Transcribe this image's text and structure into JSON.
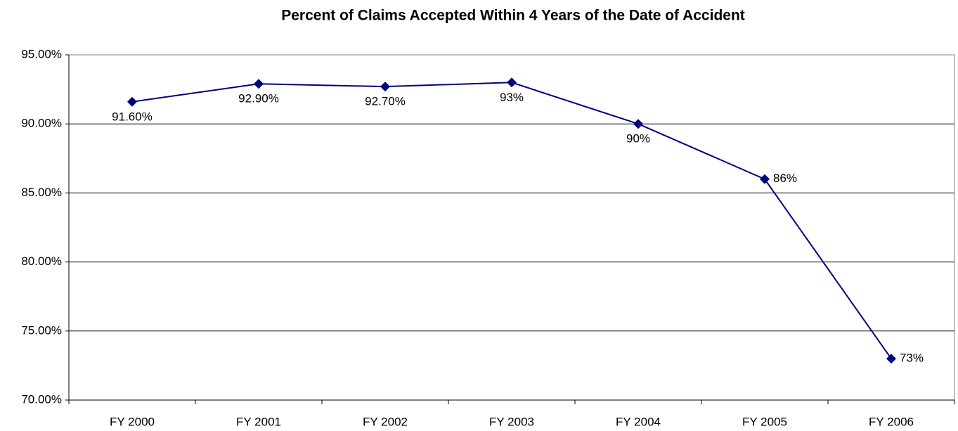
{
  "chart_data": {
    "type": "line",
    "title": "Percent of Claims Accepted Within 4 Years of the Date of Accident",
    "categories": [
      "FY 2000",
      "FY 2001",
      "FY 2002",
      "FY 2003",
      "FY 2004",
      "FY 2005",
      "FY 2006"
    ],
    "values": [
      91.6,
      92.9,
      92.7,
      93,
      90,
      86,
      73
    ],
    "value_labels": [
      "91.60%",
      "92.90%",
      "92.70%",
      "93%",
      "90%",
      "86%",
      "73%"
    ],
    "color": "#000080",
    "ylim": [
      70,
      95
    ],
    "yticks": [
      {
        "value": 70,
        "label": "70.00%"
      },
      {
        "value": 75,
        "label": "75.00%"
      },
      {
        "value": 80,
        "label": "80.00%"
      },
      {
        "value": 85,
        "label": "85.00%"
      },
      {
        "value": 90,
        "label": "90.00%"
      },
      {
        "value": 95,
        "label": "95.00%"
      }
    ],
    "grid": true
  }
}
